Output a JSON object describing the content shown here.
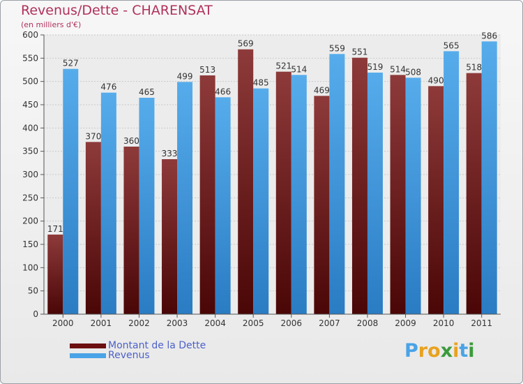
{
  "title": "Revenus/Dette - CHARENSAT",
  "subtitle": "(en milliers d'€)",
  "logo_text": "Proxiti",
  "colors": {
    "debt": "#7a1d1d",
    "debt_light": "#8e3a3a",
    "revenue": "#4aa3e6",
    "revenue_dark": "#2e7fc6",
    "title": "#b0315a",
    "legend_text": "#4d61c8"
  },
  "chart_data": {
    "type": "bar",
    "title": "Revenus/Dette - CHARENSAT",
    "subtitle": "(en milliers d'€)",
    "categories": [
      "2000",
      "2001",
      "2002",
      "2003",
      "2004",
      "2005",
      "2006",
      "2007",
      "2008",
      "2009",
      "2010",
      "2011"
    ],
    "series": [
      {
        "name": "Montant de la Dette",
        "values": [
          171,
          370,
          360,
          333,
          513,
          569,
          521,
          469,
          551,
          514,
          490,
          518
        ]
      },
      {
        "name": "Revenus",
        "values": [
          527,
          476,
          465,
          499,
          466,
          485,
          514,
          559,
          519,
          508,
          565,
          586
        ]
      }
    ],
    "ylim": [
      0,
      600
    ],
    "yticks": [
      0,
      50,
      100,
      150,
      200,
      250,
      300,
      350,
      400,
      450,
      500,
      550,
      600
    ],
    "grid": true,
    "legend": "bottom-left"
  }
}
